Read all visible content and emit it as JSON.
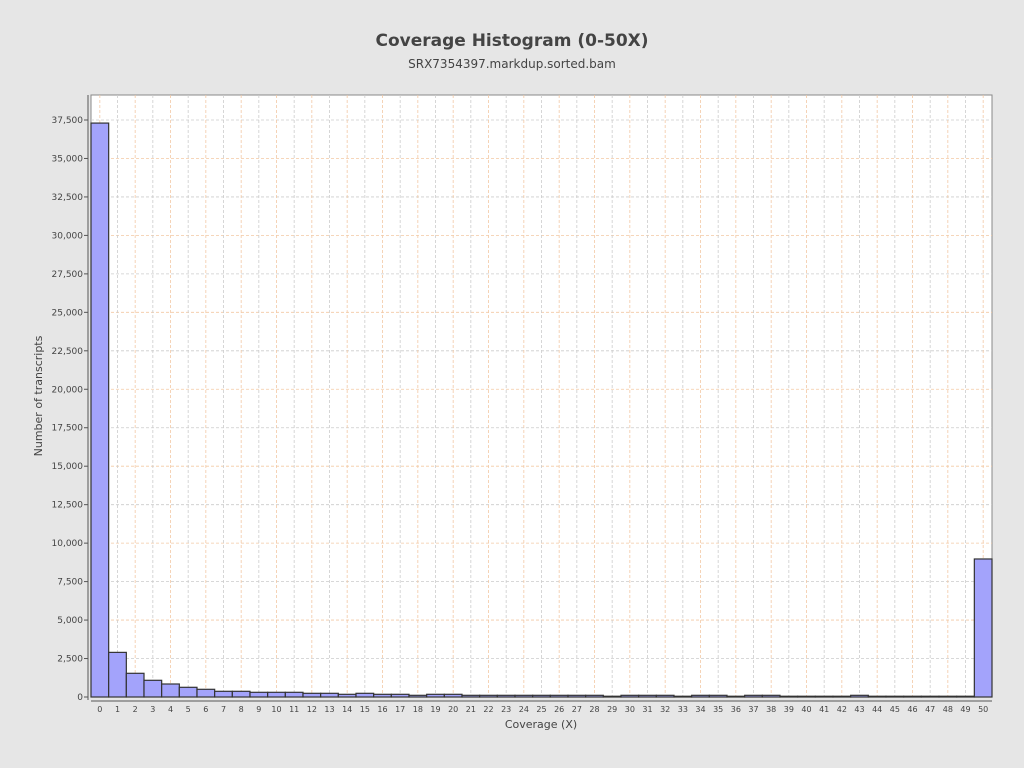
{
  "chart_data": {
    "type": "bar",
    "title": "Coverage Histogram (0-50X)",
    "subtitle": "SRX7354397.markdup.sorted.bam",
    "xlabel": "Coverage (X)",
    "ylabel": "Number of transcripts",
    "ylim": [
      0,
      39200
    ],
    "grid": true,
    "categories": [
      "0",
      "1",
      "2",
      "3",
      "4",
      "5",
      "6",
      "7",
      "8",
      "9",
      "10",
      "11",
      "12",
      "13",
      "14",
      "15",
      "16",
      "17",
      "18",
      "19",
      "20",
      "21",
      "22",
      "23",
      "24",
      "25",
      "26",
      "27",
      "28",
      "29",
      "30",
      "31",
      "32",
      "33",
      "34",
      "35",
      "36",
      "37",
      "38",
      "39",
      "40",
      "41",
      "42",
      "43",
      "44",
      "45",
      "46",
      "47",
      "48",
      "49",
      "50"
    ],
    "values": [
      37300,
      2900,
      1540,
      1085,
      845,
      630,
      500,
      370,
      370,
      305,
      305,
      305,
      240,
      240,
      175,
      240,
      175,
      175,
      110,
      175,
      175,
      110,
      110,
      110,
      110,
      110,
      110,
      110,
      110,
      50,
      110,
      110,
      110,
      50,
      110,
      110,
      50,
      110,
      110,
      50,
      50,
      50,
      50,
      110,
      50,
      50,
      50,
      50,
      50,
      50,
      8970
    ],
    "yticks": [
      0,
      2500,
      5000,
      7500,
      10000,
      12500,
      15000,
      17500,
      20000,
      22500,
      25000,
      27500,
      30000,
      32500,
      35000,
      37500
    ],
    "ytick_labels": [
      "0",
      "2,500",
      "5,000",
      "7,500",
      "10,000",
      "12,500",
      "15,000",
      "17,500",
      "20,000",
      "22,500",
      "25,000",
      "27,500",
      "30,000",
      "32,500",
      "35,000",
      "37,500"
    ],
    "colors": {
      "bar_fill": "#a3a3fb",
      "bar_stroke": "#333333",
      "grid_x": "#f3c9a4",
      "grid_y": "#cccccc"
    }
  }
}
